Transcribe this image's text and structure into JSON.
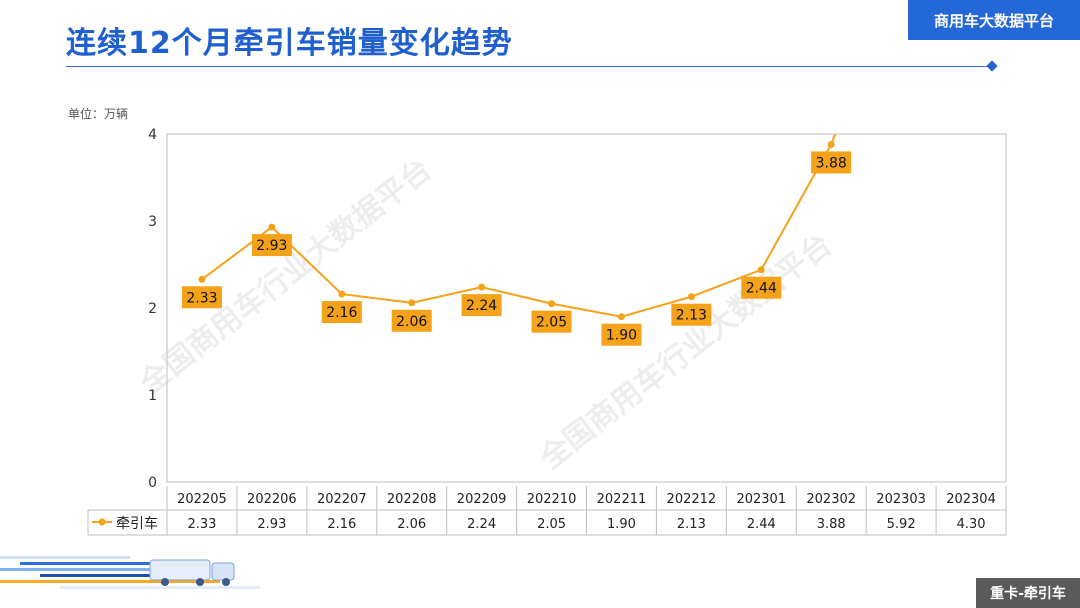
{
  "header": {
    "title": "连续12个月牵引车销量变化趋势",
    "badge": "商用车大数据平台",
    "bottom_tag": "重卡-牵引车"
  },
  "chart_data": {
    "type": "line",
    "unit_label": "单位：万辆",
    "categories": [
      "202205",
      "202206",
      "202207",
      "202208",
      "202209",
      "202210",
      "202211",
      "202212",
      "202301",
      "202302",
      "202303",
      "202304"
    ],
    "series": [
      {
        "name": "牵引车",
        "values": [
          2.33,
          2.93,
          2.16,
          2.06,
          2.24,
          2.05,
          1.9,
          2.13,
          2.44,
          3.88,
          5.92,
          4.3
        ],
        "color": "#f5a21b"
      }
    ],
    "data_labels": [
      "2.33",
      "2.93",
      "2.16",
      "2.06",
      "2.24",
      "2.05",
      "1.90",
      "2.13",
      "2.44",
      "3.88"
    ],
    "table_values": [
      "2.33",
      "2.93",
      "2.16",
      "2.06",
      "2.24",
      "2.05",
      "1.90",
      "2.13",
      "2.44",
      "3.88",
      "5.92",
      "4.30"
    ],
    "yticks": [
      "0",
      "1",
      "2",
      "3",
      "4"
    ],
    "ylim": [
      0,
      4
    ],
    "label_color": "#f5a21b",
    "watermark": "全国商用车行业大数据平台",
    "grid": false,
    "legend": "data-table"
  }
}
